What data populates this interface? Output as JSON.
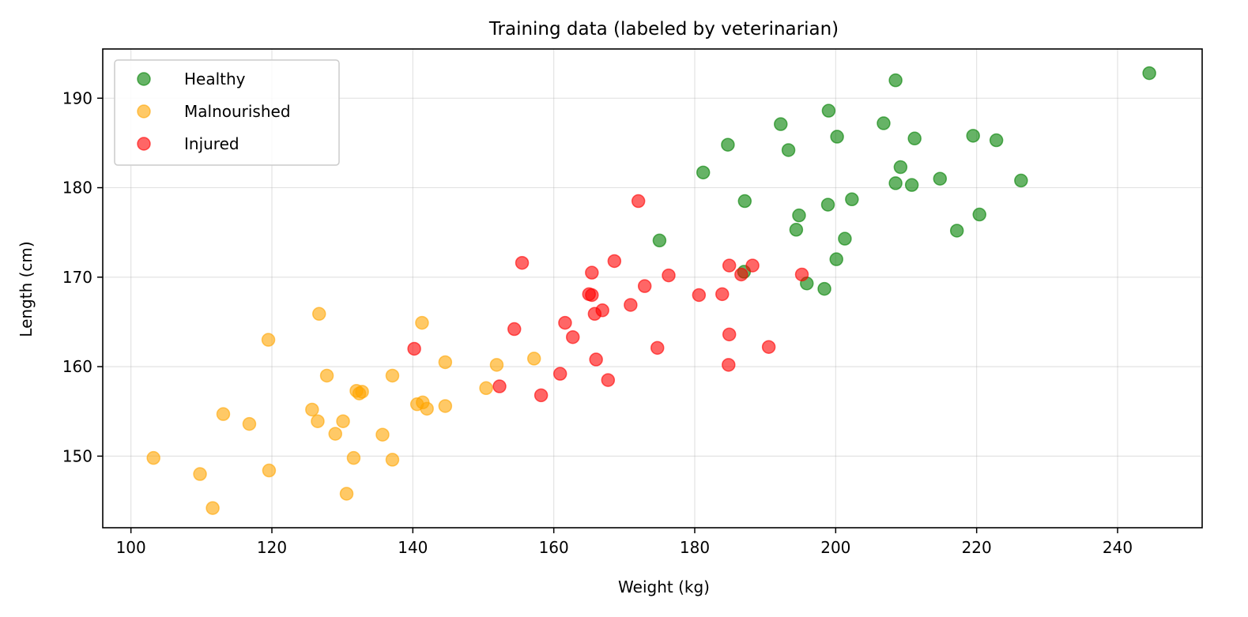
{
  "chart_data": {
    "type": "scatter",
    "title": "Training data (labeled by veterinarian)",
    "xlabel": "Weight (kg)",
    "ylabel": "Length (cm)",
    "xlim": [
      96,
      252
    ],
    "ylim": [
      142,
      195.5
    ],
    "xticks": [
      100,
      120,
      140,
      160,
      180,
      200,
      220,
      240
    ],
    "yticks": [
      150,
      160,
      170,
      180,
      190
    ],
    "xtick_labels": [
      "100",
      "120",
      "140",
      "160",
      "180",
      "200",
      "220",
      "240"
    ],
    "ytick_labels": [
      "150",
      "160",
      "170",
      "180",
      "190"
    ],
    "grid": true,
    "legend_position": "top-left",
    "series": [
      {
        "name": "Healthy",
        "color": "#008000",
        "points": [
          [
            208.5,
            192.0
          ],
          [
            244.5,
            192.8
          ],
          [
            199.0,
            188.6
          ],
          [
            192.2,
            187.1
          ],
          [
            206.8,
            187.2
          ],
          [
            184.7,
            184.8
          ],
          [
            193.3,
            184.2
          ],
          [
            200.2,
            185.7
          ],
          [
            211.2,
            185.5
          ],
          [
            219.5,
            185.8
          ],
          [
            222.8,
            185.3
          ],
          [
            181.2,
            181.7
          ],
          [
            209.2,
            182.3
          ],
          [
            208.5,
            180.5
          ],
          [
            210.8,
            180.3
          ],
          [
            214.8,
            181.0
          ],
          [
            226.3,
            180.8
          ],
          [
            187.1,
            178.5
          ],
          [
            198.9,
            178.1
          ],
          [
            202.3,
            178.7
          ],
          [
            194.8,
            176.9
          ],
          [
            220.4,
            177.0
          ],
          [
            194.4,
            175.3
          ],
          [
            201.3,
            174.3
          ],
          [
            217.2,
            175.2
          ],
          [
            175.0,
            174.1
          ],
          [
            200.1,
            172.0
          ],
          [
            187.0,
            170.6
          ],
          [
            195.9,
            169.3
          ],
          [
            198.4,
            168.7
          ]
        ]
      },
      {
        "name": "Malnourished",
        "color": "#FFA500",
        "points": [
          [
            126.7,
            165.9
          ],
          [
            141.3,
            164.9
          ],
          [
            119.5,
            163.0
          ],
          [
            144.6,
            160.5
          ],
          [
            151.9,
            160.2
          ],
          [
            157.2,
            160.9
          ],
          [
            127.8,
            159.0
          ],
          [
            137.1,
            159.0
          ],
          [
            132.0,
            157.3
          ],
          [
            132.8,
            157.2
          ],
          [
            132.4,
            157.0
          ],
          [
            150.4,
            157.6
          ],
          [
            140.6,
            155.8
          ],
          [
            141.4,
            156.0
          ],
          [
            142.0,
            155.3
          ],
          [
            144.6,
            155.6
          ],
          [
            125.7,
            155.2
          ],
          [
            113.1,
            154.7
          ],
          [
            126.5,
            153.9
          ],
          [
            130.1,
            153.9
          ],
          [
            116.8,
            153.6
          ],
          [
            129.0,
            152.5
          ],
          [
            135.7,
            152.4
          ],
          [
            103.2,
            149.8
          ],
          [
            131.6,
            149.8
          ],
          [
            137.1,
            149.6
          ],
          [
            109.8,
            148.0
          ],
          [
            119.6,
            148.4
          ],
          [
            130.6,
            145.8
          ],
          [
            111.6,
            144.2
          ]
        ]
      },
      {
        "name": "Injured",
        "color": "#FF0000",
        "points": [
          [
            172.0,
            178.5
          ],
          [
            155.5,
            171.6
          ],
          [
            168.6,
            171.8
          ],
          [
            165.4,
            170.5
          ],
          [
            176.3,
            170.2
          ],
          [
            184.9,
            171.3
          ],
          [
            188.2,
            171.3
          ],
          [
            186.6,
            170.3
          ],
          [
            195.2,
            170.3
          ],
          [
            165.0,
            168.1
          ],
          [
            165.4,
            168.0
          ],
          [
            172.9,
            169.0
          ],
          [
            180.6,
            168.0
          ],
          [
            183.9,
            168.1
          ],
          [
            170.9,
            166.9
          ],
          [
            166.9,
            166.3
          ],
          [
            165.8,
            165.9
          ],
          [
            154.4,
            164.2
          ],
          [
            161.6,
            164.9
          ],
          [
            162.7,
            163.3
          ],
          [
            184.9,
            163.6
          ],
          [
            140.2,
            162.0
          ],
          [
            174.7,
            162.1
          ],
          [
            190.5,
            162.2
          ],
          [
            166.0,
            160.8
          ],
          [
            184.8,
            160.2
          ],
          [
            160.9,
            159.2
          ],
          [
            167.7,
            158.5
          ],
          [
            152.3,
            157.8
          ],
          [
            158.2,
            156.8
          ]
        ]
      }
    ]
  }
}
